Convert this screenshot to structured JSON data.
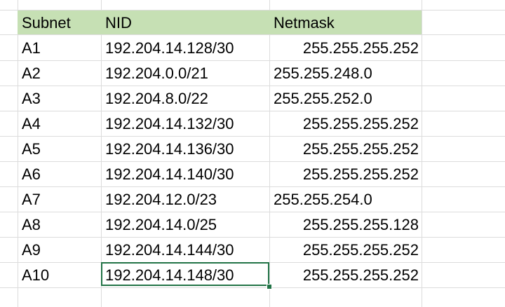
{
  "headers": {
    "subnet": "Subnet",
    "nid": "NID",
    "netmask": "Netmask"
  },
  "rows": [
    {
      "subnet": "A1",
      "nid": "192.204.14.128/30",
      "netmask": "255.255.255.252",
      "align": "right"
    },
    {
      "subnet": "A2",
      "nid": "192.204.0.0/21",
      "netmask": "255.255.248.0",
      "align": "left"
    },
    {
      "subnet": "A3",
      "nid": "192.204.8.0/22",
      "netmask": "255.255.252.0",
      "align": "left"
    },
    {
      "subnet": "A4",
      "nid": "192.204.14.132/30",
      "netmask": "255.255.255.252",
      "align": "right"
    },
    {
      "subnet": "A5",
      "nid": "192.204.14.136/30",
      "netmask": "255.255.255.252",
      "align": "right"
    },
    {
      "subnet": "A6",
      "nid": "192.204.14.140/30",
      "netmask": "255.255.255.252",
      "align": "right"
    },
    {
      "subnet": "A7",
      "nid": "192.204.12.0/23",
      "netmask": "255.255.254.0",
      "align": "left"
    },
    {
      "subnet": "A8",
      "nid": "192.204.14.0/25",
      "netmask": "255.255.255.128",
      "align": "right"
    },
    {
      "subnet": "A9",
      "nid": "192.204.14.144/30",
      "netmask": "255.255.255.252",
      "align": "right"
    },
    {
      "subnet": "A10",
      "nid": "192.204.14.148/30",
      "netmask": "255.255.255.252",
      "align": "right"
    }
  ],
  "selected": {
    "row": 9,
    "column": "nid"
  },
  "colors": {
    "header_fill": "#c6e0b4",
    "selection_border": "#217346",
    "gridline": "#dcdcdc"
  }
}
